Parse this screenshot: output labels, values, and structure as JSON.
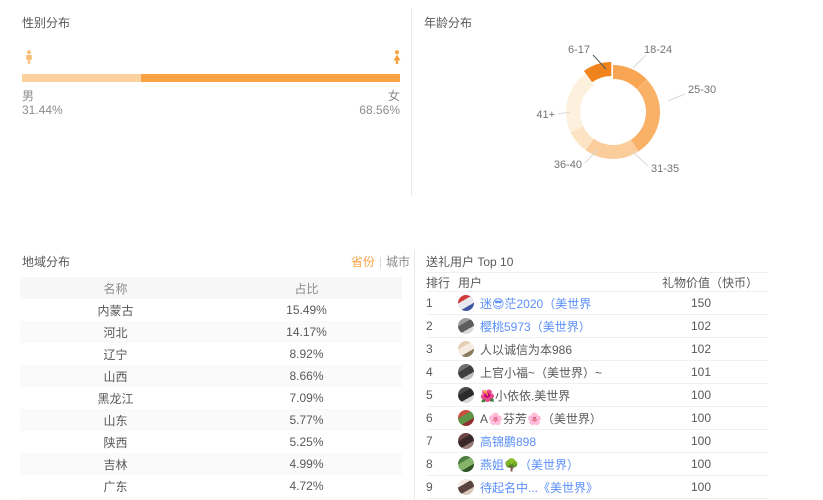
{
  "colors": {
    "accent_orange": "#f9a243",
    "light_orange": "#fbd29e",
    "link_blue": "#5b8ff9",
    "text_dark": "#595959",
    "text_gray": "#8c8c8c"
  },
  "gender_panel": {
    "title": "性别分布",
    "male_label": "男",
    "male_value": "31.44%",
    "male_pct": 31.44,
    "male_color": "#fbd29e",
    "female_label": "女",
    "female_value": "68.56%",
    "female_pct": 68.56,
    "female_color": "#f9a243"
  },
  "age_panel": {
    "title": "年龄分布"
  },
  "chart_data": [
    {
      "type": "bar",
      "title": "性别分布",
      "categories": [
        "男",
        "女"
      ],
      "values": [
        31.44,
        68.56
      ],
      "unit": "%",
      "colors": [
        "#fbd29e",
        "#f9a243"
      ]
    },
    {
      "type": "pie",
      "title": "年龄分布",
      "donut": true,
      "start_angle_deg": 0,
      "clockwise": true,
      "segments": [
        {
          "label": "18-24",
          "value": 13,
          "color": "#f8a654"
        },
        {
          "label": "25-30",
          "value": 28,
          "color": "#f9b168"
        },
        {
          "label": "31-35",
          "value": 19,
          "color": "#facd9b"
        },
        {
          "label": "36-40",
          "value": 8,
          "color": "#fbe3c4"
        },
        {
          "label": "41+",
          "value": 22,
          "color": "#fdf0dd"
        },
        {
          "label": "6-17",
          "value": 10,
          "color": "#f0831c",
          "exploded": true
        }
      ],
      "note": "values estimated from arc angles"
    }
  ],
  "region_panel": {
    "title": "地域分布",
    "toggle": {
      "selected": "省份",
      "separator": "|",
      "other": "城市"
    },
    "columns": [
      "名称",
      "占比"
    ],
    "rows": [
      [
        "内蒙古",
        "15.49%"
      ],
      [
        "河北",
        "14.17%"
      ],
      [
        "辽宁",
        "8.92%"
      ],
      [
        "山西",
        "8.66%"
      ],
      [
        "黑龙江",
        "7.09%"
      ],
      [
        "山东",
        "5.77%"
      ],
      [
        "陕西",
        "5.25%"
      ],
      [
        "吉林",
        "4.99%"
      ],
      [
        "广东",
        "4.72%"
      ]
    ]
  },
  "gift_panel": {
    "title": "送礼用户 Top 10",
    "columns": [
      "排行",
      "用户",
      "礼物价值（快币）"
    ],
    "rows": [
      {
        "rank": "1",
        "name": "迷😎茫2020（美世界",
        "value": "150",
        "link": true,
        "avatar": [
          "#cf3d3d",
          "#e8e8ee",
          "#3a57a0"
        ]
      },
      {
        "rank": "2",
        "name": "樱桃5973（美世界）",
        "value": "102",
        "link": true,
        "avatar": [
          "#9b9b9b",
          "#5d5d5d",
          "#d9d9d9"
        ]
      },
      {
        "rank": "3",
        "name": "人以诚信为本986",
        "value": "102",
        "link": false,
        "avatar": [
          "#e3d0b4",
          "#f4ece0",
          "#8a7a5e"
        ]
      },
      {
        "rank": "4",
        "name": "上官小福~（美世界）~",
        "value": "101",
        "link": false,
        "avatar": [
          "#6e6e6e",
          "#3f3f3f",
          "#bdbdbd"
        ]
      },
      {
        "rank": "5",
        "name": "🌺小依依.美世界",
        "value": "100",
        "link": false,
        "avatar": [
          "#4a4a4a",
          "#2b2b2b",
          "#d8d8d8"
        ]
      },
      {
        "rank": "6",
        "name": "A🌸芬芳🌸（美世界）",
        "value": "100",
        "link": false,
        "avatar": [
          "#c8503c",
          "#5f9447",
          "#8f2f2f"
        ]
      },
      {
        "rank": "7",
        "name": "高锦鹏898",
        "value": "100",
        "link": true,
        "avatar": [
          "#6d4444",
          "#3a2828",
          "#9c7b7b"
        ]
      },
      {
        "rank": "8",
        "name": "燕姐🌳（美世界）",
        "value": "100",
        "link": true,
        "avatar": [
          "#4f7d3f",
          "#86b36a",
          "#2f5526"
        ]
      },
      {
        "rank": "9",
        "name": "待起名中...《美世界》",
        "value": "100",
        "link": true,
        "avatar": [
          "#f2e7df",
          "#5a4440",
          "#d9c7bc"
        ]
      }
    ]
  }
}
